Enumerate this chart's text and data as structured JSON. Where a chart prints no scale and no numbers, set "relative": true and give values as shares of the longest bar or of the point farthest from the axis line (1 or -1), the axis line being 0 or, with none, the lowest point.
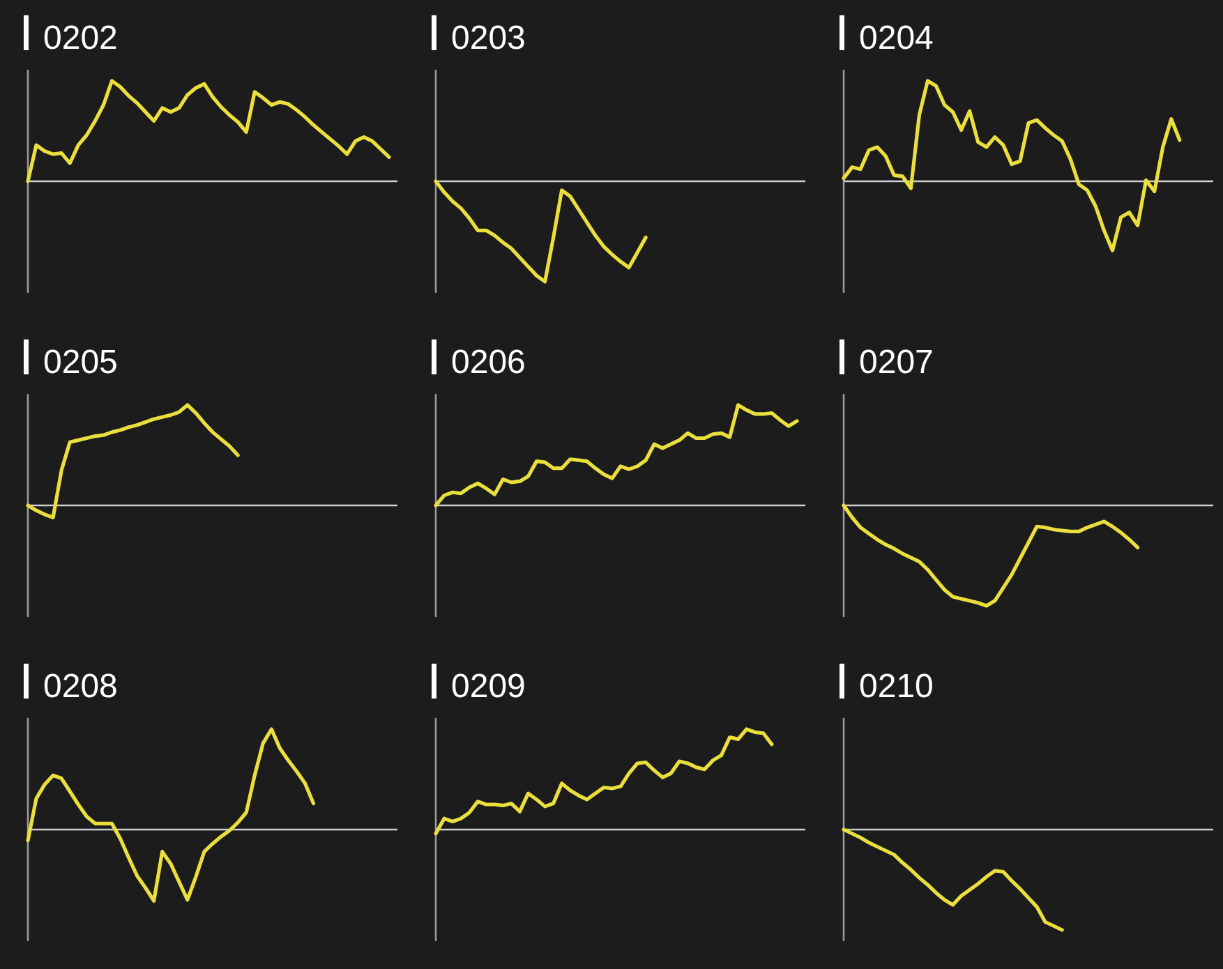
{
  "chart_data": [
    {
      "type": "line",
      "title": "0202",
      "relative": true,
      "color": "#eadf3c",
      "categories": [
        null,
        null,
        null,
        null,
        null,
        null,
        null,
        null,
        null,
        null,
        null,
        null,
        null,
        null,
        null,
        null,
        null,
        null,
        null,
        null,
        null,
        null,
        null,
        null,
        null,
        null,
        null,
        null,
        null,
        null,
        null,
        null,
        null,
        null,
        null,
        null,
        null,
        null,
        null,
        null,
        null,
        null,
        null,
        null,
        null
      ],
      "values": [
        0,
        0.36,
        0.3,
        0.27,
        0.28,
        0.18,
        0.36,
        0.46,
        0.6,
        0.76,
        1,
        0.94,
        0.85,
        0.78,
        0.69,
        0.6,
        0.73,
        0.69,
        0.73,
        0.86,
        0.93,
        0.97,
        0.84,
        0.74,
        0.66,
        0.59,
        0.49,
        0.89,
        0.83,
        0.76,
        0.79,
        0.77,
        0.71,
        0.64,
        0.56,
        0.49,
        0.42,
        0.35,
        0.27,
        0.4,
        0.44,
        0.4,
        0.32,
        0.24,
        null
      ]
    },
    {
      "type": "line",
      "title": "0203",
      "relative": true,
      "color": "#eadf3c",
      "categories": [
        null,
        null,
        null,
        null,
        null,
        null,
        null,
        null,
        null,
        null,
        null,
        null,
        null,
        null,
        null,
        null,
        null,
        null,
        null,
        null,
        null,
        null,
        null,
        null,
        null,
        null,
        null,
        null,
        null,
        null,
        null,
        null,
        null,
        null,
        null,
        null,
        null,
        null,
        null,
        null,
        null,
        null,
        null,
        null,
        null
      ],
      "values": [
        0,
        -0.11,
        -0.2,
        -0.27,
        -0.37,
        -0.49,
        -0.49,
        -0.54,
        -0.61,
        -0.67,
        -0.76,
        -0.85,
        -0.94,
        -1,
        -0.56,
        -0.09,
        -0.15,
        -0.28,
        -0.41,
        -0.54,
        -0.65,
        -0.73,
        -0.8,
        -0.86,
        -0.71,
        -0.56,
        null,
        null,
        null,
        null,
        null,
        null,
        null,
        null,
        null,
        null,
        null,
        null,
        null,
        null,
        null,
        null,
        null,
        null,
        null
      ]
    },
    {
      "type": "line",
      "title": "0204",
      "relative": true,
      "color": "#eadf3c",
      "categories": [
        null,
        null,
        null,
        null,
        null,
        null,
        null,
        null,
        null,
        null,
        null,
        null,
        null,
        null,
        null,
        null,
        null,
        null,
        null,
        null,
        null,
        null,
        null,
        null,
        null,
        null,
        null,
        null,
        null,
        null,
        null,
        null,
        null,
        null,
        null,
        null,
        null,
        null,
        null,
        null,
        null,
        null,
        null,
        null,
        null
      ],
      "values": [
        0.03,
        0.14,
        0.12,
        0.31,
        0.34,
        0.25,
        0.06,
        0.05,
        -0.07,
        0.66,
        1,
        0.95,
        0.76,
        0.69,
        0.51,
        0.7,
        0.39,
        0.34,
        0.44,
        0.36,
        0.17,
        0.2,
        0.58,
        0.61,
        0.53,
        0.46,
        0.4,
        0.22,
        -0.03,
        -0.09,
        -0.25,
        -0.49,
        -0.69,
        -0.36,
        -0.31,
        -0.44,
        0.01,
        -0.1,
        0.34,
        0.62,
        0.41,
        null,
        null,
        null,
        null
      ]
    },
    {
      "type": "line",
      "title": "0205",
      "relative": true,
      "color": "#eadf3c",
      "categories": [
        null,
        null,
        null,
        null,
        null,
        null,
        null,
        null,
        null,
        null,
        null,
        null,
        null,
        null,
        null,
        null,
        null,
        null,
        null,
        null,
        null,
        null,
        null,
        null,
        null,
        null,
        null,
        null,
        null,
        null,
        null,
        null,
        null,
        null,
        null,
        null,
        null,
        null,
        null,
        null,
        null,
        null,
        null,
        null,
        null
      ],
      "values": [
        0,
        -0.05,
        -0.09,
        -0.12,
        0.35,
        0.63,
        0.65,
        0.67,
        0.69,
        0.7,
        0.73,
        0.75,
        0.78,
        0.8,
        0.83,
        0.86,
        0.88,
        0.9,
        0.93,
        1,
        0.92,
        0.82,
        0.73,
        0.66,
        0.59,
        0.5,
        null,
        null,
        null,
        null,
        null,
        null,
        null,
        null,
        null,
        null,
        null,
        null,
        null,
        null,
        null,
        null,
        null,
        null,
        null
      ]
    },
    {
      "type": "line",
      "title": "0206",
      "relative": true,
      "color": "#eadf3c",
      "categories": [
        null,
        null,
        null,
        null,
        null,
        null,
        null,
        null,
        null,
        null,
        null,
        null,
        null,
        null,
        null,
        null,
        null,
        null,
        null,
        null,
        null,
        null,
        null,
        null,
        null,
        null,
        null,
        null,
        null,
        null,
        null,
        null,
        null,
        null,
        null,
        null,
        null,
        null,
        null,
        null,
        null,
        null,
        null,
        null,
        null
      ],
      "values": [
        0,
        0.1,
        0.13,
        0.12,
        0.18,
        0.22,
        0.17,
        0.11,
        0.26,
        0.23,
        0.24,
        0.29,
        0.44,
        0.43,
        0.37,
        0.37,
        0.46,
        0.45,
        0.44,
        0.37,
        0.31,
        0.27,
        0.39,
        0.36,
        0.39,
        0.45,
        0.61,
        0.57,
        0.61,
        0.65,
        0.72,
        0.67,
        0.67,
        0.71,
        0.72,
        0.68,
        1,
        0.95,
        0.91,
        0.91,
        0.92,
        0.85,
        0.79,
        0.84,
        null
      ]
    },
    {
      "type": "line",
      "title": "0207",
      "relative": true,
      "color": "#eadf3c",
      "categories": [
        null,
        null,
        null,
        null,
        null,
        null,
        null,
        null,
        null,
        null,
        null,
        null,
        null,
        null,
        null,
        null,
        null,
        null,
        null,
        null,
        null,
        null,
        null,
        null,
        null,
        null,
        null,
        null,
        null,
        null,
        null,
        null,
        null,
        null,
        null,
        null,
        null,
        null,
        null,
        null,
        null,
        null,
        null,
        null,
        null
      ],
      "values": [
        0,
        -0.12,
        -0.22,
        -0.28,
        -0.34,
        -0.39,
        -0.43,
        -0.48,
        -0.52,
        -0.56,
        -0.64,
        -0.74,
        -0.84,
        -0.91,
        -0.93,
        -0.95,
        -0.97,
        -1,
        -0.95,
        -0.82,
        -0.69,
        -0.53,
        -0.37,
        -0.21,
        -0.22,
        -0.24,
        -0.25,
        -0.26,
        -0.26,
        -0.22,
        -0.19,
        -0.16,
        -0.21,
        -0.27,
        -0.34,
        -0.42,
        null,
        null,
        null,
        null,
        null,
        null,
        null,
        null,
        null
      ]
    },
    {
      "type": "line",
      "title": "0208",
      "relative": true,
      "color": "#eadf3c",
      "categories": [
        null,
        null,
        null,
        null,
        null,
        null,
        null,
        null,
        null,
        null,
        null,
        null,
        null,
        null,
        null,
        null,
        null,
        null,
        null,
        null,
        null,
        null,
        null,
        null,
        null,
        null,
        null,
        null,
        null,
        null,
        null,
        null,
        null,
        null,
        null,
        null,
        null,
        null,
        null,
        null,
        null,
        null,
        null,
        null,
        null
      ],
      "values": [
        -0.11,
        0.31,
        0.45,
        0.54,
        0.51,
        0.38,
        0.25,
        0.13,
        0.06,
        0.06,
        0.06,
        -0.09,
        -0.28,
        -0.46,
        -0.58,
        -0.71,
        -0.22,
        -0.34,
        -0.52,
        -0.7,
        -0.47,
        -0.22,
        -0.14,
        -0.07,
        -0.01,
        0.07,
        0.17,
        0.54,
        0.86,
        1,
        0.81,
        0.69,
        0.58,
        0.46,
        0.26,
        null,
        null,
        null,
        null,
        null,
        null,
        null,
        null,
        null,
        null
      ]
    },
    {
      "type": "line",
      "title": "0209",
      "relative": true,
      "color": "#eadf3c",
      "categories": [
        null,
        null,
        null,
        null,
        null,
        null,
        null,
        null,
        null,
        null,
        null,
        null,
        null,
        null,
        null,
        null,
        null,
        null,
        null,
        null,
        null,
        null,
        null,
        null,
        null,
        null,
        null,
        null,
        null,
        null,
        null,
        null,
        null,
        null,
        null,
        null,
        null,
        null,
        null,
        null,
        null,
        null,
        null,
        null,
        null
      ],
      "values": [
        -0.04,
        0.11,
        0.08,
        0.11,
        0.17,
        0.28,
        0.25,
        0.25,
        0.24,
        0.26,
        0.18,
        0.36,
        0.3,
        0.23,
        0.26,
        0.46,
        0.39,
        0.34,
        0.3,
        0.36,
        0.42,
        0.41,
        0.43,
        0.56,
        0.66,
        0.67,
        0.59,
        0.52,
        0.56,
        0.68,
        0.66,
        0.62,
        0.6,
        0.69,
        0.74,
        0.92,
        0.9,
        1,
        0.97,
        0.96,
        0.85,
        null,
        null,
        null,
        null
      ]
    },
    {
      "type": "line",
      "title": "0210",
      "relative": true,
      "color": "#eadf3c",
      "categories": [
        null,
        null,
        null,
        null,
        null,
        null,
        null,
        null,
        null,
        null,
        null,
        null,
        null,
        null,
        null,
        null,
        null,
        null,
        null,
        null,
        null,
        null,
        null,
        null,
        null,
        null,
        null,
        null,
        null,
        null,
        null,
        null,
        null,
        null,
        null,
        null,
        null,
        null,
        null,
        null,
        null,
        null,
        null,
        null,
        null
      ],
      "values": [
        0,
        -0.04,
        -0.08,
        -0.13,
        -0.17,
        -0.21,
        -0.25,
        -0.33,
        -0.4,
        -0.48,
        -0.55,
        -0.63,
        -0.7,
        -0.75,
        -0.66,
        -0.6,
        -0.54,
        -0.47,
        -0.41,
        -0.42,
        -0.51,
        -0.59,
        -0.68,
        -0.77,
        -0.92,
        -0.96,
        -1,
        null,
        null,
        null,
        null,
        null,
        null,
        null,
        null,
        null,
        null,
        null,
        null,
        null,
        null,
        null,
        null,
        null,
        null
      ]
    }
  ]
}
